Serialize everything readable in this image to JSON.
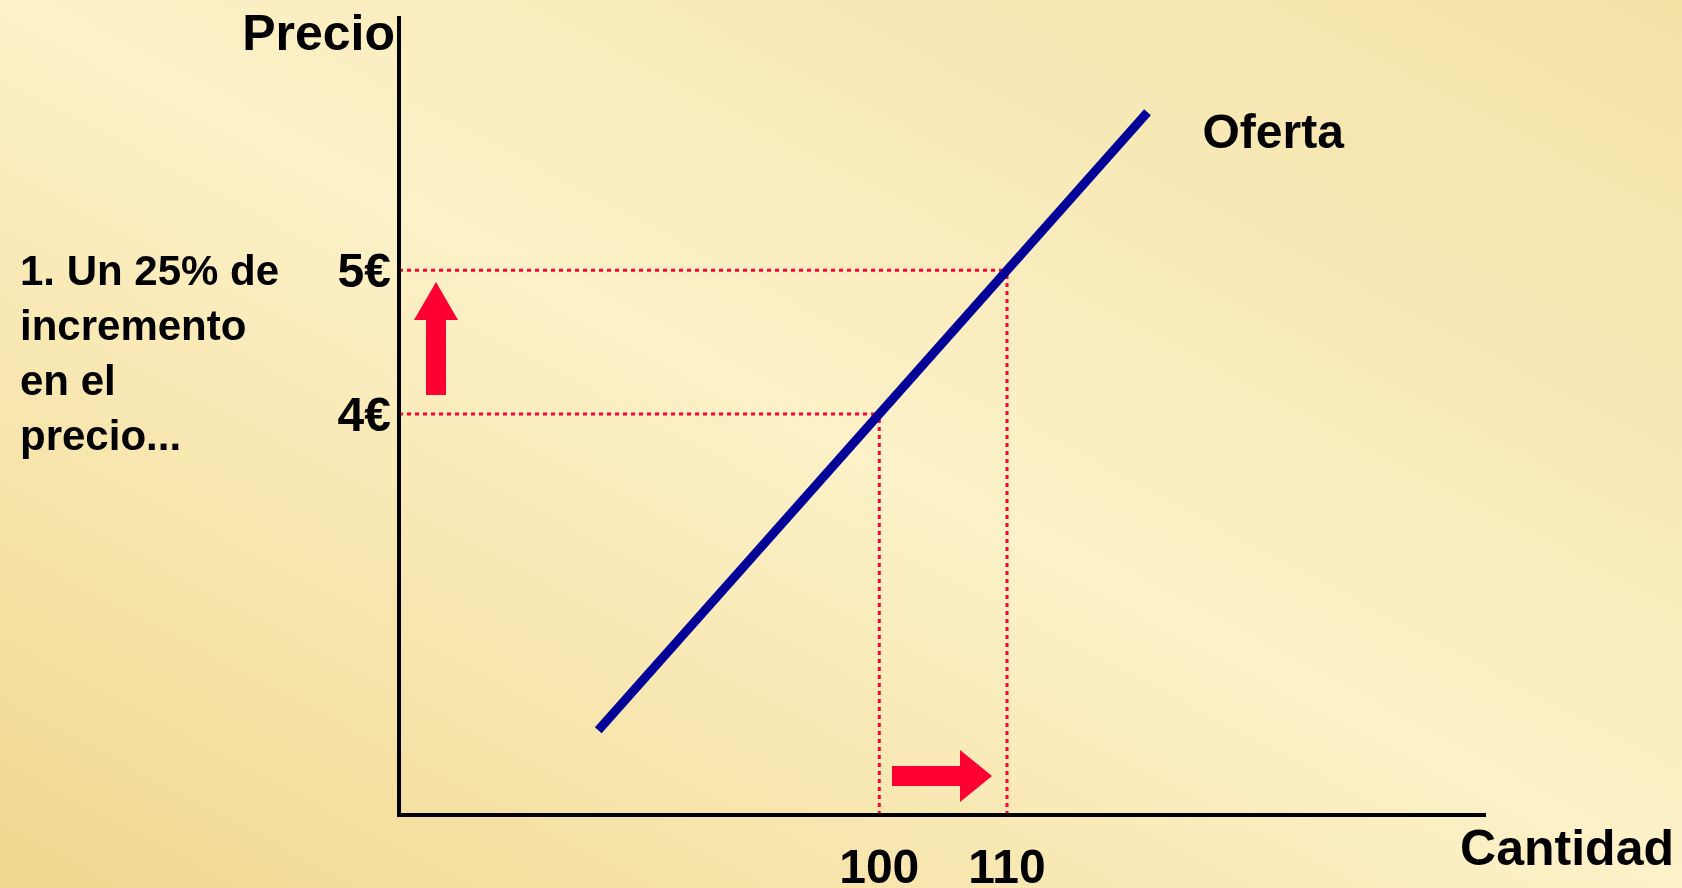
{
  "chart_data": {
    "type": "line",
    "xlabel": "Cantidad",
    "ylabel": "Precio",
    "xlim": [
      62.4,
      147.5
    ],
    "ylim": [
      1.21,
      6.77
    ],
    "xticks": [
      100,
      110
    ],
    "yticks": [
      {
        "value": 4,
        "label": "4€"
      },
      {
        "value": 5,
        "label": "5€"
      }
    ],
    "series": [
      {
        "name": "Oferta",
        "color": "#000099",
        "x": [
          78,
          100,
          110,
          121
        ],
        "values": [
          1.8,
          4,
          5,
          6.1
        ]
      }
    ],
    "ref_lines": [
      {
        "axis": "y",
        "value": 4,
        "color": "#ff0033",
        "line_style": "dotted"
      },
      {
        "axis": "y",
        "value": 5,
        "color": "#ff0033",
        "line_style": "dotted"
      },
      {
        "axis": "x",
        "value": 100,
        "color": "#ff0033",
        "line_style": "dotted"
      },
      {
        "axis": "x",
        "value": 110,
        "color": "#ff0033",
        "line_style": "dotted"
      }
    ],
    "annotations": [
      "1. Un 25% de incremento en el precio..."
    ],
    "grid": false
  }
}
